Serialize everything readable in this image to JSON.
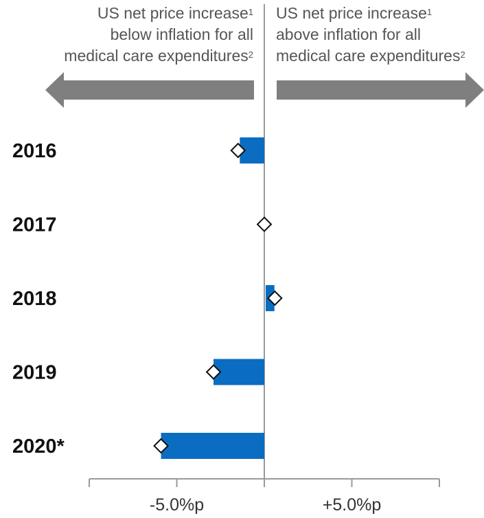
{
  "header": {
    "left_line1": "US net price increase",
    "left_line1_sup": "1",
    "left_line2": "below inflation for all",
    "left_line3": "medical care expenditures",
    "left_line3_sup": "2",
    "right_line1": "US net price increase",
    "right_line1_sup": "1",
    "right_line2": "above inflation for all",
    "right_line3": "medical care expenditures",
    "right_line3_sup": "2"
  },
  "colors": {
    "bar": "#0a6dc2",
    "arrow": "#7f7f7f",
    "axis": "#999999",
    "marker_fill": "#ffffff",
    "marker_stroke": "#111111"
  },
  "chart_data": {
    "type": "bar",
    "orientation": "horizontal",
    "categories": [
      "2016",
      "2017",
      "2018",
      "2019",
      "2020*"
    ],
    "series": [
      {
        "values": [
          -1.4,
          0.0,
          0.5,
          -2.9,
          -5.9
        ],
        "marker": "bar"
      },
      {
        "values": [
          -1.5,
          0.0,
          0.6,
          -2.9,
          -5.9
        ],
        "marker": "diamond"
      }
    ],
    "xlim": [
      -10,
      10
    ],
    "xticks": [
      -10,
      -5,
      0,
      5,
      10
    ],
    "tick_labels": [
      "-5.0%p",
      "+5.0%p"
    ],
    "tick_label_values": [
      -5,
      5
    ],
    "legend": "none",
    "grid": false
  }
}
